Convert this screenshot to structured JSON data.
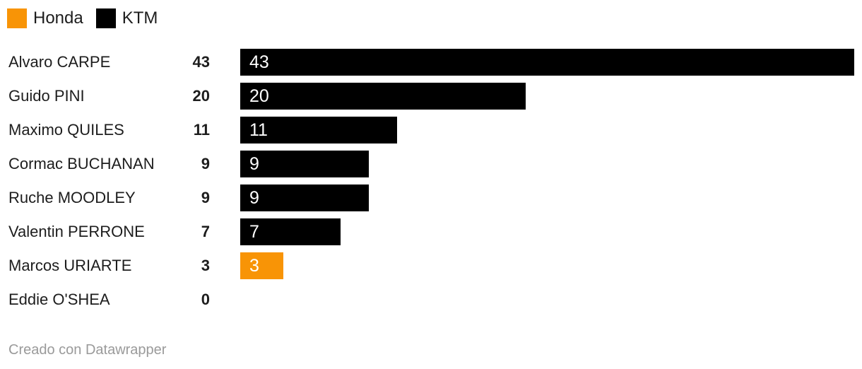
{
  "colors": {
    "honda": "#F89406",
    "ktm": "#000000",
    "label_text": "#1d1d1d",
    "bar_label_text": "#ffffff",
    "footer_text": "#9a9a9a",
    "background": "#ffffff"
  },
  "legend": {
    "items": [
      {
        "label": "Honda",
        "team": "honda"
      },
      {
        "label": "KTM",
        "team": "ktm"
      }
    ]
  },
  "chart_data": {
    "type": "bar",
    "orientation": "horizontal",
    "title": "",
    "xlabel": "",
    "ylabel": "",
    "xlim": [
      0,
      43
    ],
    "grid": false,
    "legend_position": "top-left",
    "categories": [
      "Alvaro CARPE",
      "Guido PINI",
      "Maximo QUILES",
      "Cormac BUCHANAN",
      "Ruche MOODLEY",
      "Valentin PERRONE",
      "Marcos URIARTE",
      "Eddie O'SHEA"
    ],
    "values": [
      43,
      20,
      11,
      9,
      9,
      7,
      3,
      0
    ],
    "teams": [
      "ktm",
      "ktm",
      "ktm",
      "ktm",
      "ktm",
      "ktm",
      "honda",
      null
    ],
    "value_labels": [
      "43",
      "20",
      "11",
      "9",
      "9",
      "7",
      "3",
      "0"
    ],
    "bar_labels": [
      "43",
      "20",
      "11",
      "9",
      "9",
      "7",
      "3",
      ""
    ]
  },
  "footer": {
    "credit": "Creado con Datawrapper"
  }
}
